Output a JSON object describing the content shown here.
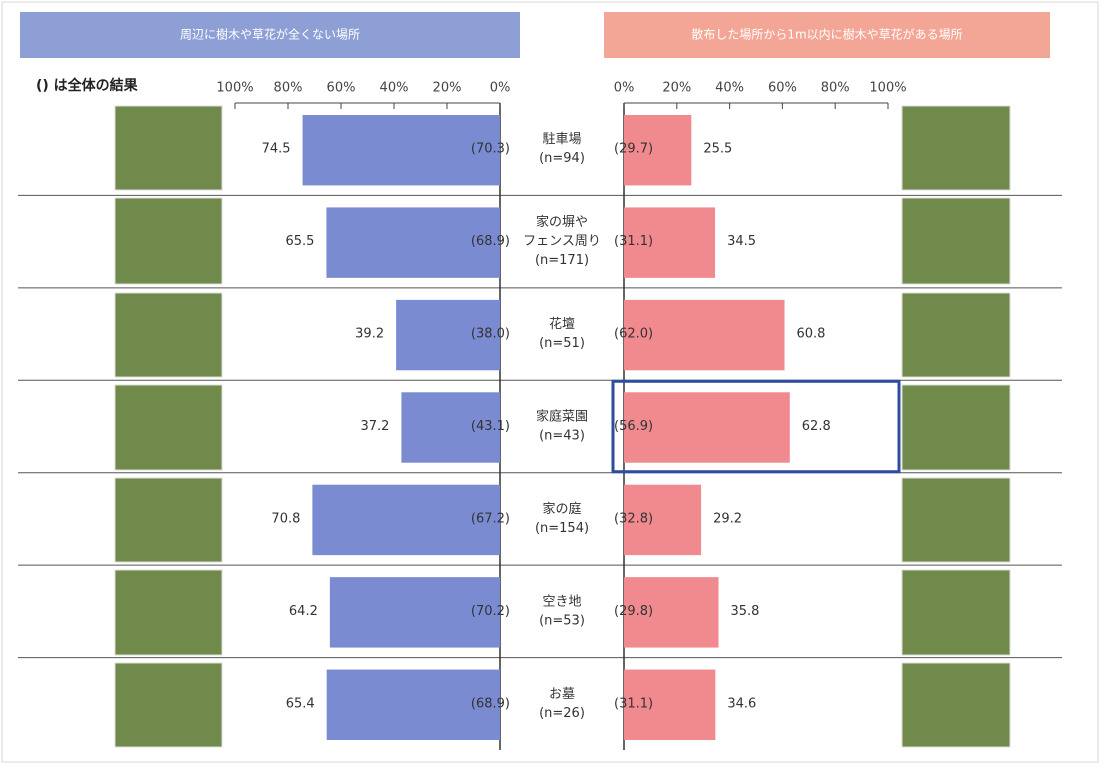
{
  "chart_data": {
    "type": "butterfly",
    "note": "() は全体の結果",
    "categories": [
      [
        "駐車場",
        "(n=94)"
      ],
      [
        "家の塀や",
        "フェンス周り",
        "(n=171)"
      ],
      [
        "花壇",
        "(n=51)"
      ],
      [
        "家庭菜園",
        "(n=43)"
      ],
      [
        "家の庭",
        "(n=154)"
      ],
      [
        "空き地",
        "(n=53)"
      ],
      [
        "お墓",
        "(n=26)"
      ]
    ],
    "highlight_category": 3,
    "series": [
      {
        "name": "周辺に樹木や草花が全くない場所",
        "color": "#7b8bd2",
        "xlim": [
          100,
          0
        ],
        "xticks": [
          {
            "value": 100,
            "label": "100%"
          },
          {
            "value": 80,
            "label": "80%"
          },
          {
            "value": 60,
            "label": "60%"
          },
          {
            "value": 40,
            "label": "40%"
          },
          {
            "value": 20,
            "label": "20%"
          },
          {
            "value": 0,
            "label": "0%"
          }
        ],
        "values": [
          74.5,
          65.5,
          39.2,
          37.2,
          70.8,
          64.2,
          65.4
        ],
        "overall_values": [
          70.3,
          68.9,
          38.0,
          43.1,
          67.2,
          70.2,
          68.9
        ],
        "overall_value_labels": [
          "(70.3)",
          "(68.9)",
          "(38.0)",
          "(43.1)",
          "(67.2)",
          "(70.2)",
          "(68.9)"
        ]
      },
      {
        "name": "散布した場所から1m以内に樹木や草花がある場所",
        "color": "#f08a8f",
        "xlim": [
          0,
          100
        ],
        "xticks": [
          {
            "value": 0,
            "label": "0%"
          },
          {
            "value": 20,
            "label": "20%"
          },
          {
            "value": 40,
            "label": "40%"
          },
          {
            "value": 60,
            "label": "60%"
          },
          {
            "value": 80,
            "label": "80%"
          },
          {
            "value": 100,
            "label": "100%"
          }
        ],
        "values": [
          25.5,
          34.5,
          60.8,
          62.8,
          29.2,
          35.8,
          34.6
        ],
        "overall_values": [
          29.7,
          31.1,
          62.0,
          56.9,
          32.8,
          29.8,
          31.1
        ],
        "overall_value_labels": [
          "(29.7)",
          "(31.1)",
          "(62.0)",
          "(56.9)",
          "(32.8)",
          "(29.8)",
          "(31.1)"
        ]
      }
    ]
  }
}
